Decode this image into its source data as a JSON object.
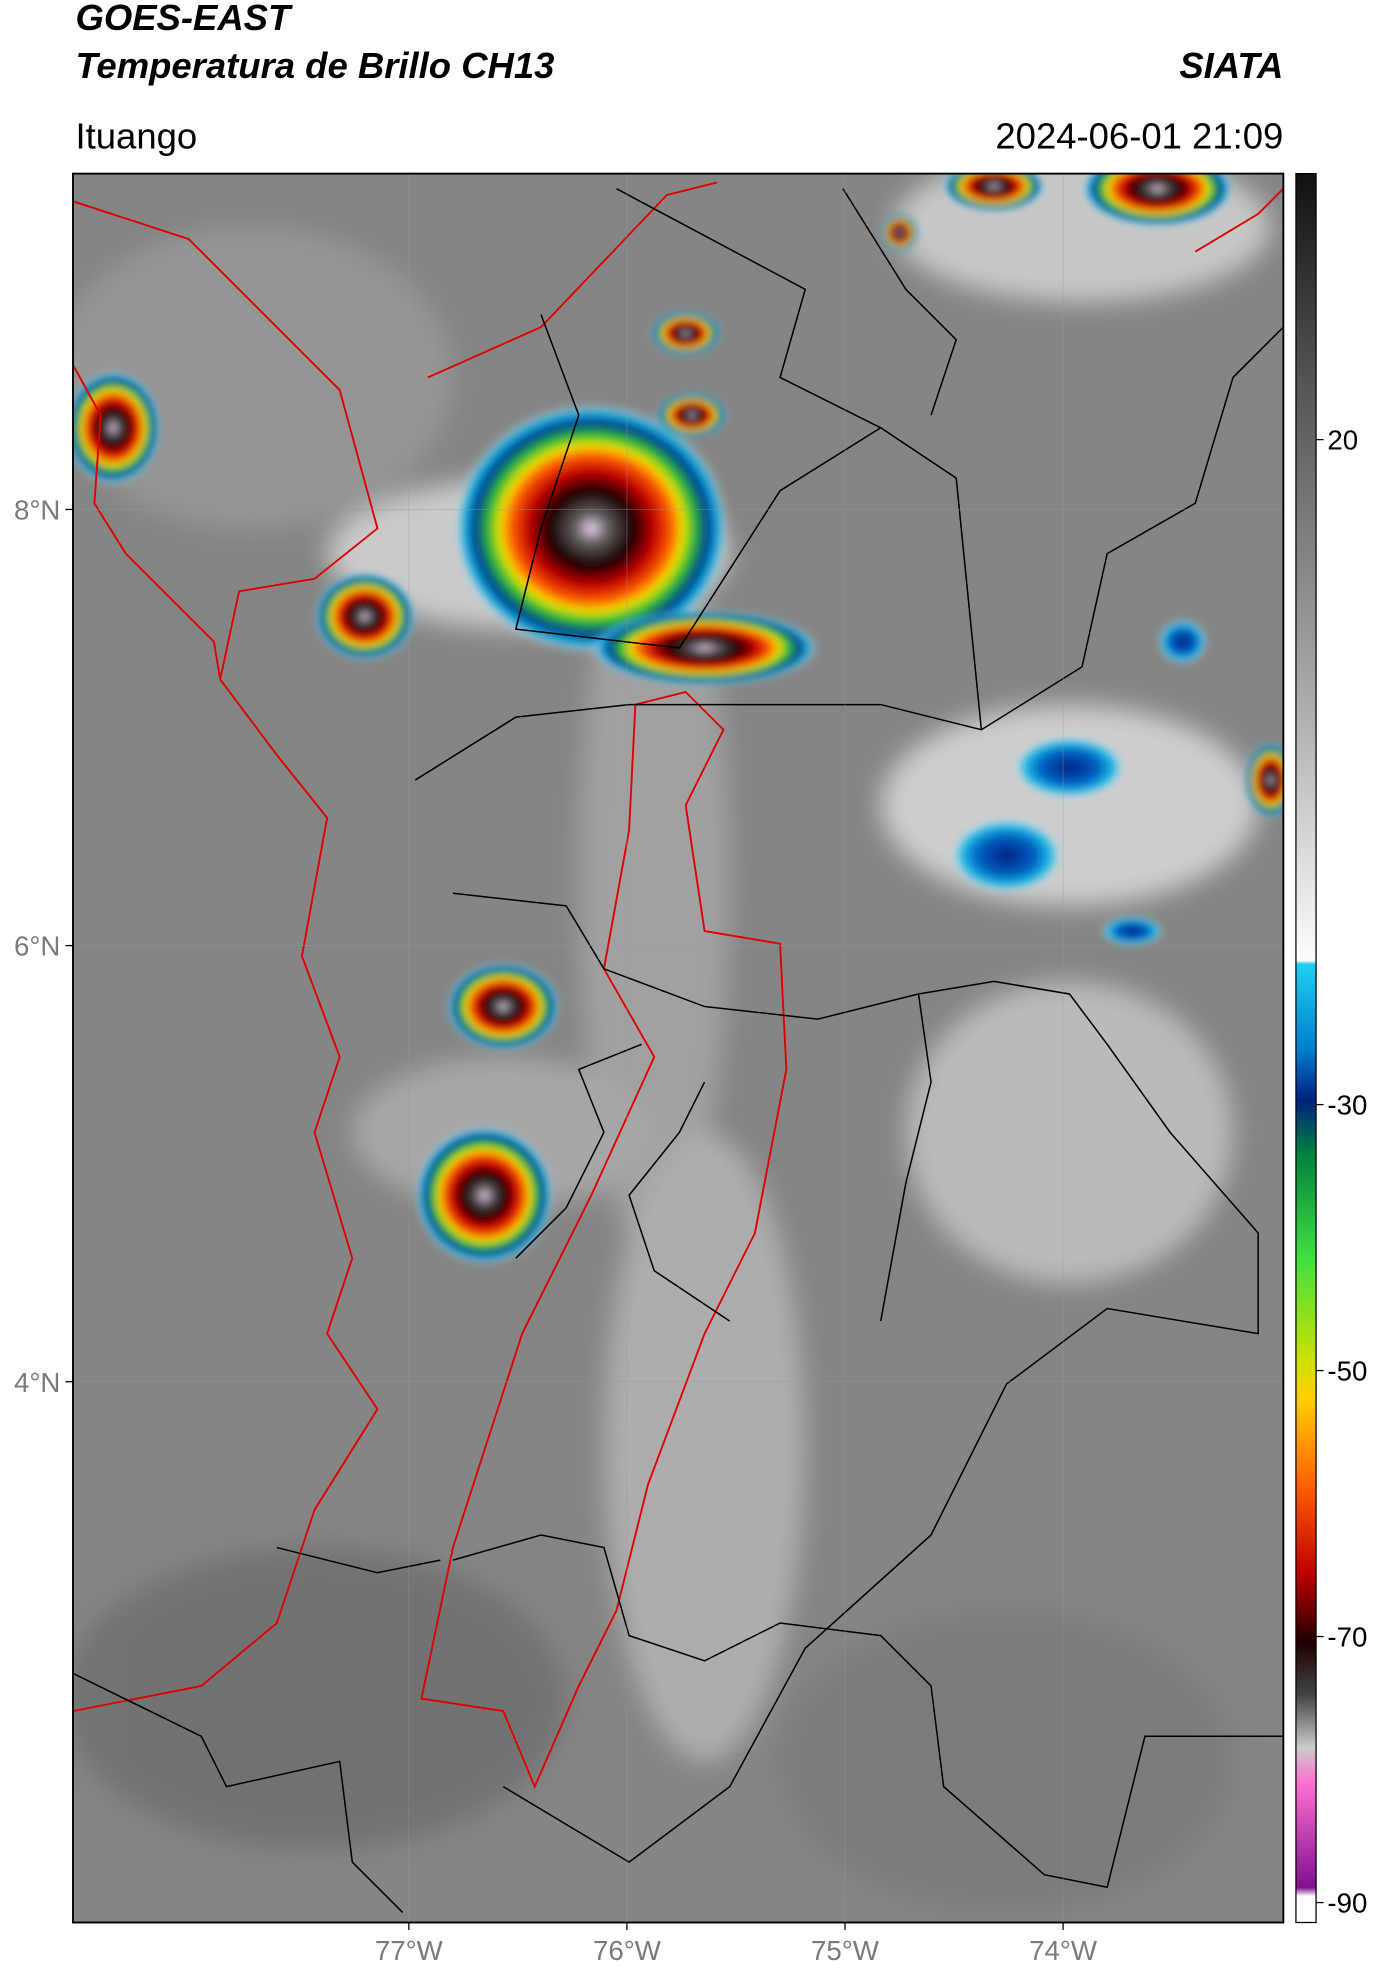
{
  "header": {
    "title": "GOES-EAST",
    "subtitle": "Temperatura de Brillo CH13",
    "brand": "SIATA",
    "location": "Ituango",
    "datetime": "2024-06-01 21:09"
  },
  "map": {
    "xlim": [
      -78.54,
      -72.99
    ],
    "ylim": [
      1.52,
      9.54
    ],
    "xticks": [
      {
        "value": -77,
        "label": "77°W"
      },
      {
        "value": -76,
        "label": "76°W"
      },
      {
        "value": -75,
        "label": "75°W"
      },
      {
        "value": -74,
        "label": "74°W"
      }
    ],
    "yticks": [
      {
        "value": 8,
        "label": "8°N"
      },
      {
        "value": 6,
        "label": "6°N"
      },
      {
        "value": 4,
        "label": "4°N"
      }
    ]
  },
  "colorbar": {
    "lim": [
      -91.5,
      40
    ],
    "ticks": [
      20,
      -30,
      -50,
      -70,
      -90
    ]
  }
}
